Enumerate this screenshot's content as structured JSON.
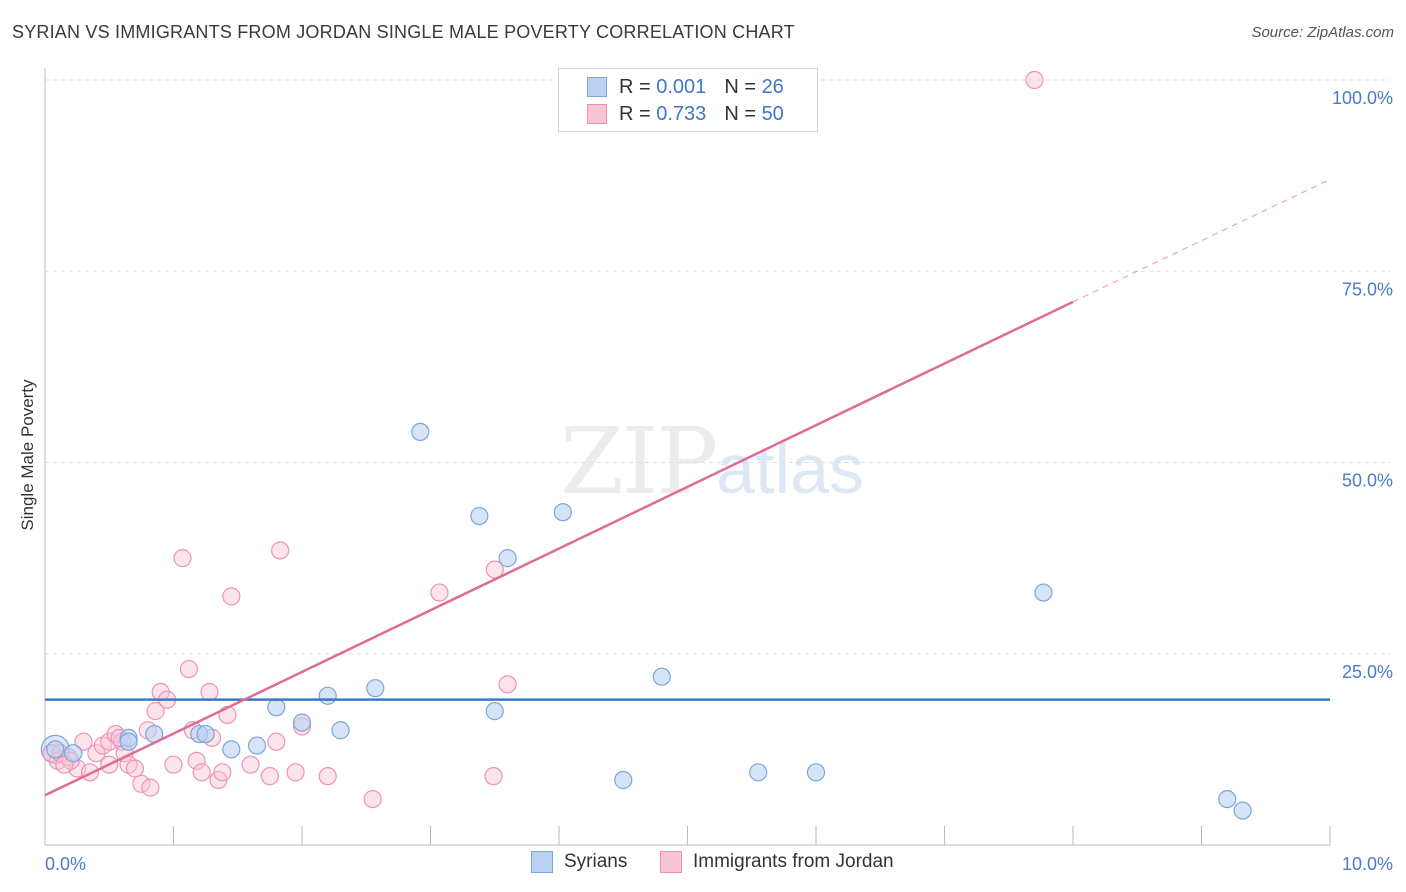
{
  "title": "SYRIAN VS IMMIGRANTS FROM JORDAN SINGLE MALE POVERTY CORRELATION CHART",
  "source": "Source: ZipAtlas.com",
  "watermark": {
    "zip": "ZIP",
    "atlas": "atlas"
  },
  "legend_top": {
    "rows": [
      {
        "r_label": "R = ",
        "r_value": "0.001",
        "n_label": "N = ",
        "n_value": "26"
      },
      {
        "r_label": "R = ",
        "r_value": "0.733",
        "n_label": "N = ",
        "n_value": "50"
      }
    ]
  },
  "legend_bottom": {
    "series1": "Syrians",
    "series2": "Immigrants from Jordan"
  },
  "colors": {
    "blue_fill": "#b9d2f2",
    "blue_stroke": "#7aa6dc",
    "blue_line": "#3c78c8",
    "pink_fill": "#f9c4d6",
    "pink_stroke": "#ee93b3",
    "pink_line": "#e06b97",
    "grid": "#dddddd",
    "tick_text": "#4a7cc4"
  },
  "chart_data": {
    "type": "scatter",
    "title": "SYRIAN VS IMMIGRANTS FROM JORDAN SINGLE MALE POVERTY CORRELATION CHART",
    "xlabel": "",
    "ylabel": "Single Male Poverty",
    "xlim": [
      0,
      10
    ],
    "ylim": [
      0,
      100
    ],
    "x_tick_labels": [
      "0.0%",
      "10.0%"
    ],
    "y_ticks": [
      25,
      50,
      75,
      100
    ],
    "y_tick_labels": [
      "25.0%",
      "50.0%",
      "75.0%",
      "100.0%"
    ],
    "grid": true,
    "series": [
      {
        "name": "Syrians",
        "points": [
          [
            0.08,
            12.5
          ],
          [
            0.22,
            12.0
          ],
          [
            0.65,
            14.0
          ],
          [
            0.85,
            14.5
          ],
          [
            1.2,
            14.5
          ],
          [
            1.45,
            12.5
          ],
          [
            1.65,
            13.0
          ],
          [
            1.8,
            18.0
          ],
          [
            2.0,
            16.0
          ],
          [
            2.2,
            19.5
          ],
          [
            2.3,
            15.0
          ],
          [
            2.57,
            20.5
          ],
          [
            2.92,
            54.0
          ],
          [
            3.38,
            43.0
          ],
          [
            3.5,
            17.5
          ],
          [
            3.6,
            37.5
          ],
          [
            4.03,
            43.5
          ],
          [
            4.5,
            8.5
          ],
          [
            4.8,
            22.0
          ],
          [
            5.55,
            9.5
          ],
          [
            6.0,
            9.5
          ],
          [
            7.77,
            33.0
          ],
          [
            9.2,
            6.0
          ],
          [
            9.32,
            4.5
          ],
          [
            1.25,
            14.5
          ],
          [
            0.65,
            13.5
          ]
        ],
        "trend": {
          "x": [
            0,
            10
          ],
          "y": [
            19.0,
            19.0
          ]
        }
      },
      {
        "name": "Immigrants from Jordan",
        "points": [
          [
            0.05,
            12.0
          ],
          [
            0.1,
            11.0
          ],
          [
            0.18,
            11.5
          ],
          [
            0.25,
            10.0
          ],
          [
            0.3,
            13.5
          ],
          [
            0.35,
            9.5
          ],
          [
            0.4,
            12.0
          ],
          [
            0.45,
            13.0
          ],
          [
            0.5,
            13.5
          ],
          [
            0.55,
            14.5
          ],
          [
            0.6,
            13.5
          ],
          [
            0.62,
            12.0
          ],
          [
            0.65,
            10.5
          ],
          [
            0.7,
            10.0
          ],
          [
            0.75,
            8.0
          ],
          [
            0.8,
            15.0
          ],
          [
            0.82,
            7.5
          ],
          [
            0.86,
            17.5
          ],
          [
            0.9,
            20.0
          ],
          [
            0.95,
            19.0
          ],
          [
            1.0,
            10.5
          ],
          [
            1.07,
            37.5
          ],
          [
            1.12,
            23.0
          ],
          [
            1.15,
            15.0
          ],
          [
            1.18,
            11.0
          ],
          [
            1.22,
            9.5
          ],
          [
            1.28,
            20.0
          ],
          [
            1.3,
            14.0
          ],
          [
            1.35,
            8.5
          ],
          [
            1.38,
            9.5
          ],
          [
            1.42,
            17.0
          ],
          [
            1.45,
            32.5
          ],
          [
            1.6,
            10.5
          ],
          [
            1.75,
            9.0
          ],
          [
            1.8,
            13.5
          ],
          [
            1.83,
            38.5
          ],
          [
            1.95,
            9.5
          ],
          [
            2.0,
            15.5
          ],
          [
            2.2,
            9.0
          ],
          [
            2.55,
            6.0
          ],
          [
            3.07,
            33.0
          ],
          [
            3.49,
            9.0
          ],
          [
            3.5,
            36.0
          ],
          [
            3.6,
            21.0
          ],
          [
            7.7,
            100.0
          ],
          [
            0.12,
            12.0
          ],
          [
            0.5,
            10.5
          ],
          [
            0.58,
            14.0
          ],
          [
            0.2,
            11.0
          ],
          [
            0.15,
            10.5
          ]
        ],
        "trend": {
          "x": [
            0,
            8
          ],
          "y": [
            6.5,
            71.0
          ]
        },
        "trend_dashed": {
          "x": [
            8,
            10
          ],
          "y": [
            71.0,
            87.0
          ]
        }
      }
    ]
  }
}
